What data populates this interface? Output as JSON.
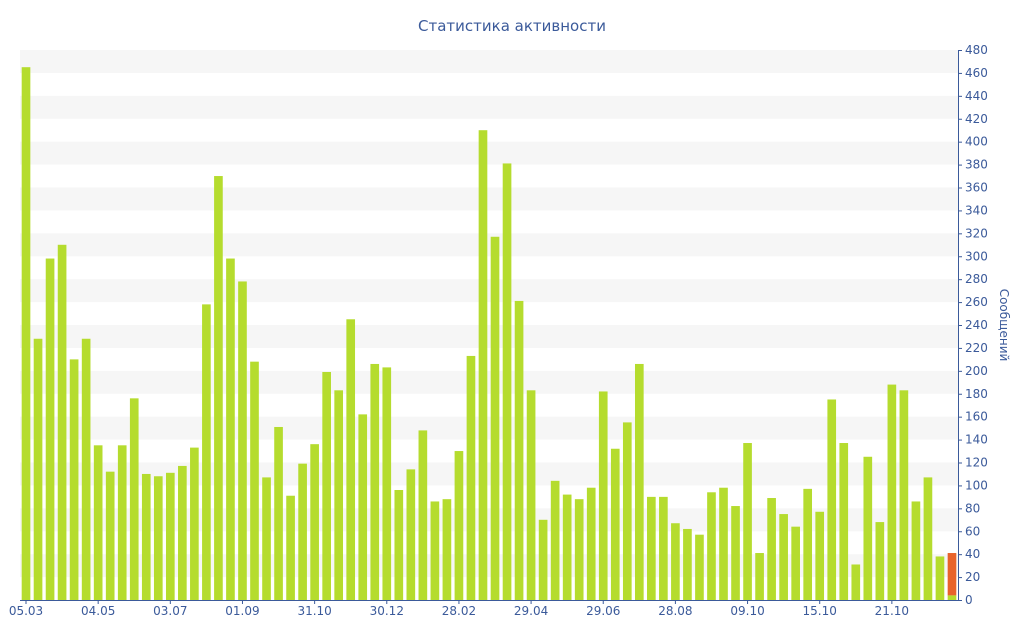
{
  "chart_data": {
    "type": "bar",
    "title": "Статистика активности",
    "xlabel": "",
    "ylabel": "Сообщений",
    "ylim": [
      0,
      480
    ],
    "y_ticks": [
      0,
      20,
      40,
      60,
      80,
      100,
      120,
      140,
      160,
      180,
      200,
      220,
      240,
      260,
      280,
      300,
      320,
      340,
      360,
      380,
      400,
      420,
      440,
      460,
      480
    ],
    "y_axis_side": "right",
    "grid": "alternating horizontal bands",
    "legend": "none",
    "x_tick_labels": [
      {
        "index": 0,
        "label": "05.03"
      },
      {
        "index": 6,
        "label": "04.05"
      },
      {
        "index": 12,
        "label": "03.07"
      },
      {
        "index": 18,
        "label": "01.09"
      },
      {
        "index": 24,
        "label": "31.10"
      },
      {
        "index": 30,
        "label": "30.12"
      },
      {
        "index": 36,
        "label": "28.02"
      },
      {
        "index": 42,
        "label": "29.04"
      },
      {
        "index": 48,
        "label": "29.06"
      },
      {
        "index": 54,
        "label": "28.08"
      },
      {
        "index": 60,
        "label": "09.10"
      },
      {
        "index": 66,
        "label": "15.10"
      },
      {
        "index": 72,
        "label": "21.10"
      }
    ],
    "values": [
      465,
      228,
      298,
      310,
      210,
      228,
      135,
      112,
      135,
      176,
      110,
      108,
      111,
      117,
      133,
      258,
      370,
      298,
      278,
      208,
      107,
      151,
      91,
      119,
      136,
      199,
      183,
      245,
      162,
      206,
      203,
      96,
      114,
      148,
      86,
      88,
      130,
      213,
      410,
      317,
      381,
      261,
      183,
      70,
      104,
      92,
      88,
      98,
      182,
      132,
      155,
      206,
      90,
      90,
      67,
      62,
      57,
      94,
      98,
      82,
      137,
      41,
      89,
      75,
      64,
      97,
      77,
      175,
      137,
      31,
      125,
      68,
      188,
      183,
      86,
      107,
      38
    ],
    "last_bar": {
      "value": 41,
      "base_value": 4
    },
    "colors": {
      "bar": "#b5dc2e",
      "last_bar": "#e8632b",
      "axis_text": "#3b5a9a",
      "band": "#f6f6f6",
      "axis": "#3b5a9a"
    }
  }
}
